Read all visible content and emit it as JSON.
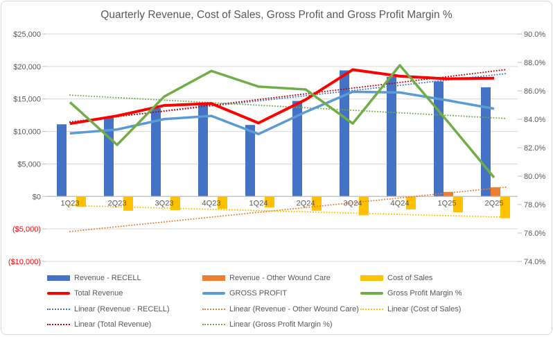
{
  "figure": {
    "background_color": "#FFFFFF",
    "border_color": "#D7D7D7",
    "text_color": "#595959",
    "gridline_color": "#D9D9D9",
    "axisline_color": "#BFBFBF",
    "negative_label_color": "#FF0000"
  },
  "chart_data": {
    "type": "bar",
    "subtype": "combo-clustered-bars-with-lines",
    "title": "Quarterly Revenue, Cost of Sales, Gross Profit and Gross Profit Margin %",
    "categories": [
      "1Q23",
      "2Q23",
      "3Q23",
      "4Q23",
      "1Q24",
      "2Q24",
      "3Q24",
      "4Q24",
      "1Q25",
      "2Q25"
    ],
    "grid": "horizontal-on",
    "legend_position": "bottom",
    "axes": {
      "left": {
        "min": -10000,
        "max": 25000,
        "tick_values": [
          25000,
          20000,
          15000,
          10000,
          5000,
          0,
          -5000,
          -10000
        ],
        "tick_labels": [
          "$25,000",
          "$20,000",
          "$15,000",
          "$10,000",
          "$5,000",
          "$0",
          "($5,000)",
          "($10,000)"
        ]
      },
      "right": {
        "min": 74,
        "max": 90,
        "tick_values": [
          90,
          88,
          86,
          84,
          82,
          80,
          78,
          76,
          74
        ],
        "tick_labels": [
          "90.0%",
          "88.0%",
          "86.0%",
          "84.0%",
          "82.0%",
          "80.0%",
          "78.0%",
          "76.0%",
          "74.0%"
        ]
      }
    },
    "series": [
      {
        "name": "Revenue - RECELL",
        "type": "bar",
        "axis": "left",
        "color": "#4472C4",
        "values": [
          11100,
          12200,
          13600,
          14200,
          11000,
          14700,
          19400,
          18400,
          17700,
          16800
        ]
      },
      {
        "name": "Revenue - Other Wound Care",
        "type": "bar",
        "axis": "left",
        "color": "#ED7D31",
        "values": [
          0,
          0,
          0,
          0,
          0,
          0,
          0,
          0,
          700,
          1400
        ]
      },
      {
        "name": "Cost of Sales",
        "type": "bar",
        "axis": "left",
        "color": "#FFC000",
        "values": [
          -1600,
          -2200,
          -2100,
          -1900,
          -1700,
          -2200,
          -2900,
          -2000,
          -2450,
          -3350
        ]
      },
      {
        "name": "Total Revenue",
        "type": "line",
        "axis": "left",
        "color": "#FF0000",
        "width": 4,
        "values": [
          11200,
          12400,
          14000,
          14300,
          11300,
          14900,
          19500,
          18500,
          18100,
          18200
        ]
      },
      {
        "name": "GROSS PROFIT",
        "type": "line",
        "axis": "left",
        "color": "#5B9BD5",
        "width": 3.5,
        "values": [
          9700,
          10300,
          11900,
          12400,
          9600,
          13000,
          16100,
          16000,
          14800,
          13500
        ]
      },
      {
        "name": "Gross Profit Margin %",
        "type": "line",
        "axis": "right",
        "color": "#70AD47",
        "width": 3.5,
        "values": [
          85.2,
          82.2,
          85.6,
          87.4,
          86.3,
          86.1,
          83.7,
          87.8,
          83.9,
          79.9
        ]
      }
    ],
    "trendlines": [
      {
        "name": "Linear (Revenue - RECELL)",
        "axis": "left",
        "color": "#4472C4",
        "start": 11500,
        "end": 18700
      },
      {
        "name": "Linear (Revenue - Other Wound Care)",
        "axis": "left",
        "color": "#ED7D31",
        "start": -5400,
        "end": 1250
      },
      {
        "name": "Linear (Cost of Sales)",
        "axis": "left",
        "color": "#FFC000",
        "start": -1400,
        "end": -3150
      },
      {
        "name": "Linear (Total Revenue)",
        "axis": "left",
        "color": "#C00000",
        "start": 11400,
        "end": 19300
      },
      {
        "name": "Linear (Gross Profit Margin %)",
        "axis": "right",
        "color": "#70AD47",
        "start": 85.7,
        "end": 84.1
      }
    ]
  },
  "legend": {
    "rows": [
      [
        {
          "label": "Revenue - RECELL",
          "color": "#4472C4",
          "swatch": "bar"
        },
        {
          "label": "Revenue - Other Wound Care",
          "color": "#ED7D31",
          "swatch": "bar"
        },
        {
          "label": "Cost of Sales",
          "color": "#FFC000",
          "swatch": "bar"
        }
      ],
      [
        {
          "label": "Total Revenue",
          "color": "#FF0000",
          "swatch": "line"
        },
        {
          "label": "GROSS PROFIT",
          "color": "#5B9BD5",
          "swatch": "line"
        },
        {
          "label": "Gross Profit Margin %",
          "color": "#70AD47",
          "swatch": "line"
        }
      ],
      [
        {
          "label": "Linear (Revenue - RECELL)",
          "color": "#4472C4",
          "swatch": "dotted"
        },
        {
          "label": "Linear (Revenue - Other Wound Care)",
          "color": "#ED7D31",
          "swatch": "dotted"
        },
        {
          "label": "Linear (Cost of Sales)",
          "color": "#FFC000",
          "swatch": "dotted"
        }
      ],
      [
        {
          "label": "Linear (Total Revenue)",
          "color": "#C00000",
          "swatch": "dotted"
        },
        {
          "label": "Linear (Gross Profit Margin %)",
          "color": "#70AD47",
          "swatch": "dotted"
        }
      ]
    ]
  }
}
